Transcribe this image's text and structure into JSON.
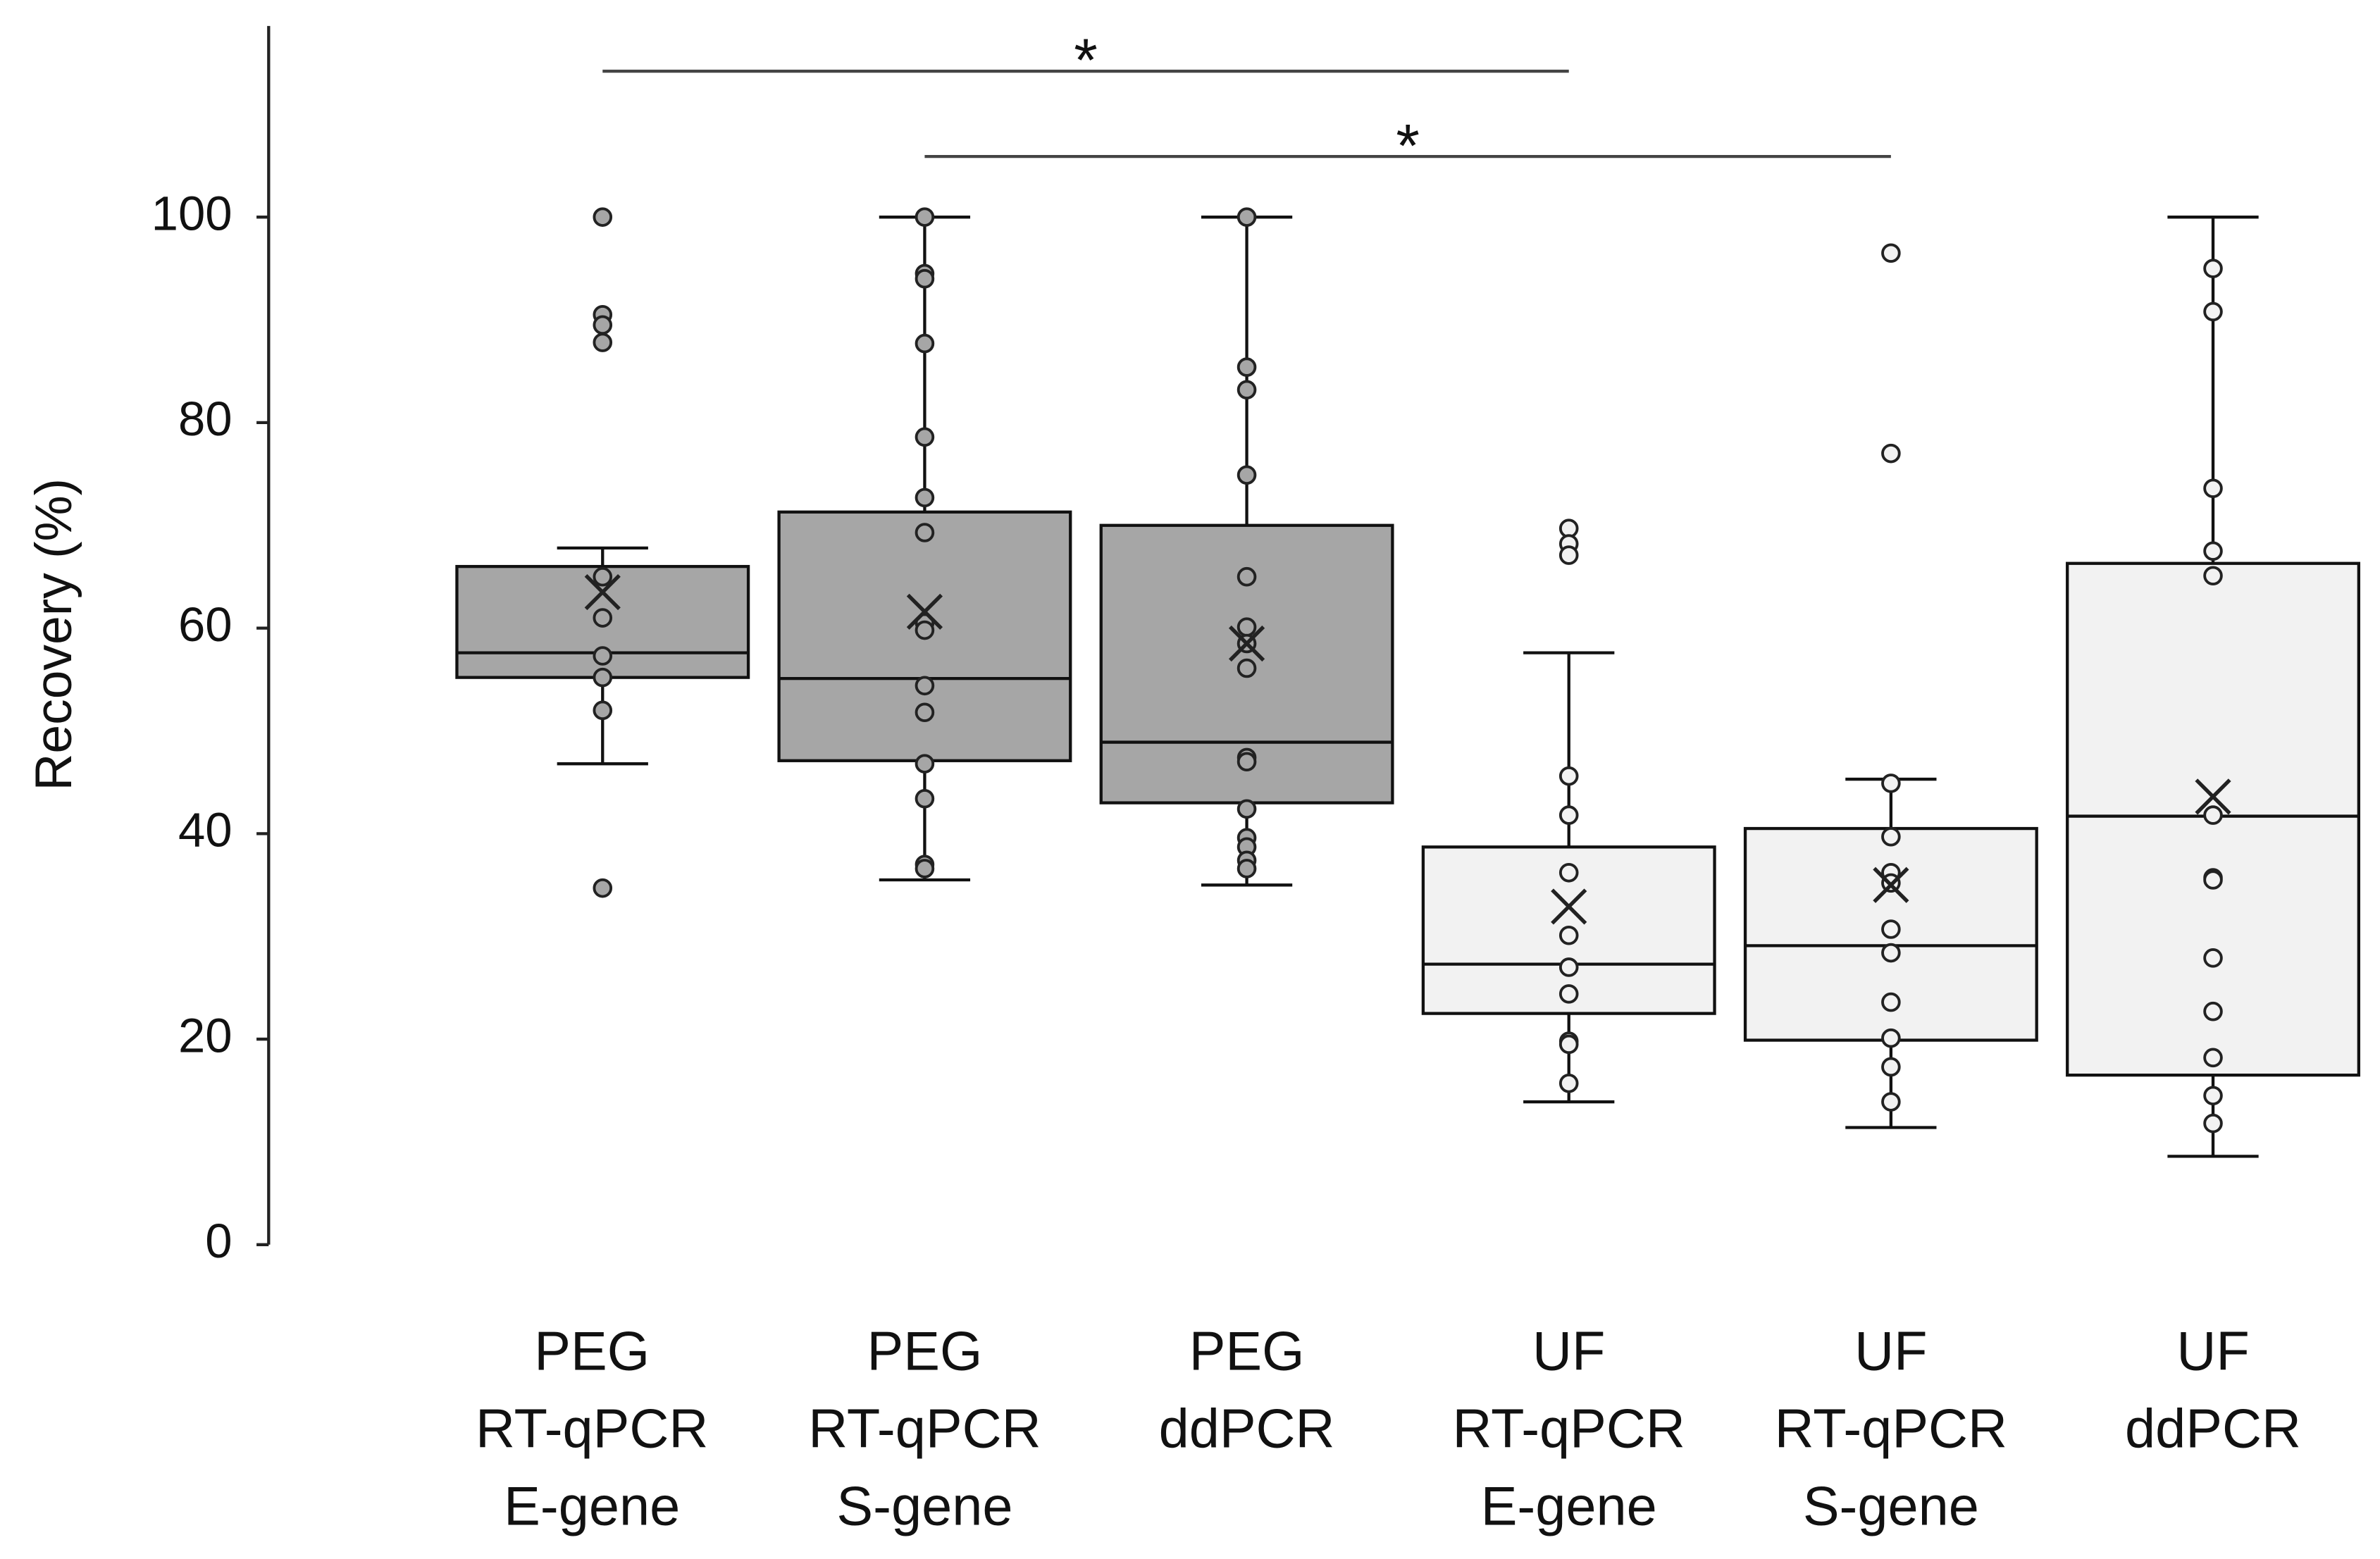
{
  "chart_data": {
    "type": "box",
    "y_label": "Recovery (%)",
    "ylim": [
      0,
      118.6
    ],
    "yticks": [
      0,
      20,
      40,
      60,
      80,
      100
    ],
    "categories": [
      [
        "PEG",
        "RT-qPCR",
        "E-gene"
      ],
      [
        "PEG",
        "RT-qPCR",
        "S-gene"
      ],
      [
        "PEG",
        "ddPCR"
      ],
      [
        "UF",
        "RT-qPCR",
        "E-gene"
      ],
      [
        "UF",
        "RT-qPCR",
        "S-gene"
      ],
      [
        "UF",
        "ddPCR"
      ]
    ],
    "colors": [
      "#a6a6a6",
      "#a6a6a6",
      "#a6a6a6",
      "#f2f2f2",
      "#f2f2f2",
      "#f2f2f2"
    ],
    "boxes": [
      {
        "whisker_low": 46.8,
        "q1": 55.2,
        "median": 57.6,
        "q3": 66.0,
        "whisker_high": 67.8,
        "mean": 63.5,
        "points": [
          100,
          90.5,
          89.5,
          87.8,
          65,
          61,
          57.3,
          55.2,
          52,
          34.7
        ]
      },
      {
        "whisker_low": 35.5,
        "q1": 47.1,
        "median": 55.1,
        "q3": 71.3,
        "whisker_high": 100,
        "mean": 61.6,
        "points": [
          100,
          94.5,
          94,
          87.7,
          78.6,
          72.7,
          69.3,
          60.5,
          59.8,
          54.4,
          51.8,
          46.8,
          43.4,
          37,
          36.6
        ]
      },
      {
        "whisker_low": 35,
        "q1": 43.0,
        "median": 48.9,
        "q3": 70.0,
        "whisker_high": 100,
        "mean": 58.5,
        "points": [
          100,
          85.4,
          83.2,
          74.9,
          65,
          60.1,
          58.5,
          56.1,
          47.4,
          47,
          42.4,
          39.6,
          38.7,
          37.4,
          36.6
        ]
      },
      {
        "whisker_low": 13.9,
        "q1": 22.5,
        "median": 27.3,
        "q3": 38.7,
        "whisker_high": 57.6,
        "mean": 32.9,
        "points": [
          69.7,
          68.2,
          67.1,
          45.6,
          41.8,
          36.2,
          30.1,
          27,
          24.4,
          19.8,
          19.5,
          15.7
        ]
      },
      {
        "whisker_low": 11.4,
        "q1": 19.9,
        "median": 29.1,
        "q3": 40.5,
        "whisker_high": 45.3,
        "mean": 35,
        "points": [
          96.5,
          77,
          44.9,
          39.7,
          36.2,
          35.2,
          30.7,
          28.4,
          23.6,
          20.1,
          17.3,
          13.9
        ]
      },
      {
        "whisker_low": 8.6,
        "q1": 16.5,
        "median": 41.7,
        "q3": 66.3,
        "whisker_high": 100,
        "mean": 43.6,
        "points": [
          95,
          90.8,
          73.6,
          67.5,
          65.1,
          41.8,
          35.7,
          35.5,
          27.9,
          22.7,
          18.2,
          14.5,
          11.8
        ]
      }
    ],
    "significance": [
      {
        "from": 0,
        "to": 3,
        "y": 114.2,
        "label": "*"
      },
      {
        "from": 1,
        "to": 4,
        "y": 105.9,
        "label": "*"
      }
    ]
  }
}
